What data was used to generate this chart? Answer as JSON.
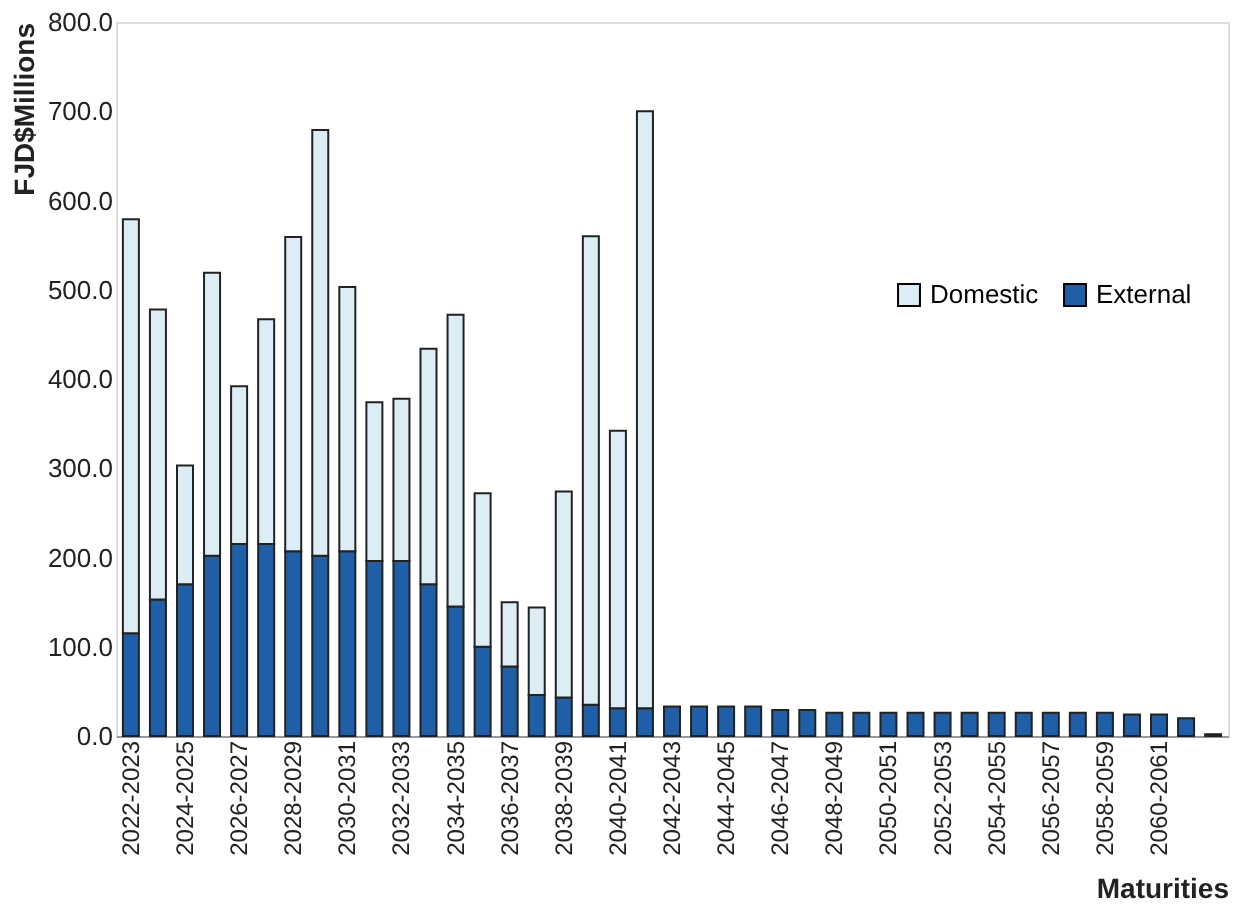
{
  "chart_data": {
    "type": "bar",
    "stacked": true,
    "ylabel": "FJD$Millions",
    "xlabel": "Maturities",
    "categories": [
      "2022-2023",
      null,
      "2024-2025",
      null,
      "2026-2027",
      null,
      "2028-2029",
      null,
      "2030-2031",
      null,
      "2032-2033",
      null,
      "2034-2035",
      null,
      "2036-2037",
      null,
      "2038-2039",
      null,
      "2040-2041",
      null,
      "2042-2043",
      null,
      "2044-2045",
      null,
      "2046-2047",
      null,
      "2048-2049",
      null,
      "2050-2051",
      null,
      "2052-2053",
      null,
      "2054-2055",
      null,
      "2056-2057",
      null,
      "2058-2059",
      null,
      "2060-2061",
      null,
      null
    ],
    "series": [
      {
        "name": "External",
        "color": "#1f5fa8",
        "values": [
          115,
          153,
          170,
          202,
          215,
          215,
          207,
          202,
          207,
          196,
          196,
          170,
          145,
          100,
          78,
          46,
          43,
          35,
          31,
          31,
          33,
          33,
          33,
          33,
          29,
          29,
          26,
          26,
          26,
          26,
          26,
          26,
          26,
          26,
          26,
          26,
          26,
          24,
          24,
          20,
          2
        ]
      },
      {
        "name": "Domestic",
        "color": "#dcedf6",
        "values": [
          464,
          325,
          133,
          317,
          177,
          252,
          352,
          477,
          296,
          178,
          182,
          264,
          327,
          172,
          72,
          98,
          231,
          525,
          311,
          669,
          null,
          null,
          null,
          null,
          null,
          null,
          null,
          null,
          null,
          null,
          null,
          null,
          null,
          null,
          null,
          null,
          null,
          null,
          null,
          null,
          null
        ]
      }
    ],
    "ylim": [
      0,
      800
    ],
    "yticks": [
      {
        "value": 0,
        "label": "0.0"
      },
      {
        "value": 100,
        "label": "100.0"
      },
      {
        "value": 200,
        "label": "200.0"
      },
      {
        "value": 300,
        "label": "300.0"
      },
      {
        "value": 400,
        "label": "400.0"
      },
      {
        "value": 500,
        "label": "500.0"
      },
      {
        "value": 600,
        "label": "600.0"
      },
      {
        "value": 700,
        "label": "700.0"
      },
      {
        "value": 800,
        "label": "800.0"
      }
    ],
    "grid": false,
    "legend": "right"
  }
}
